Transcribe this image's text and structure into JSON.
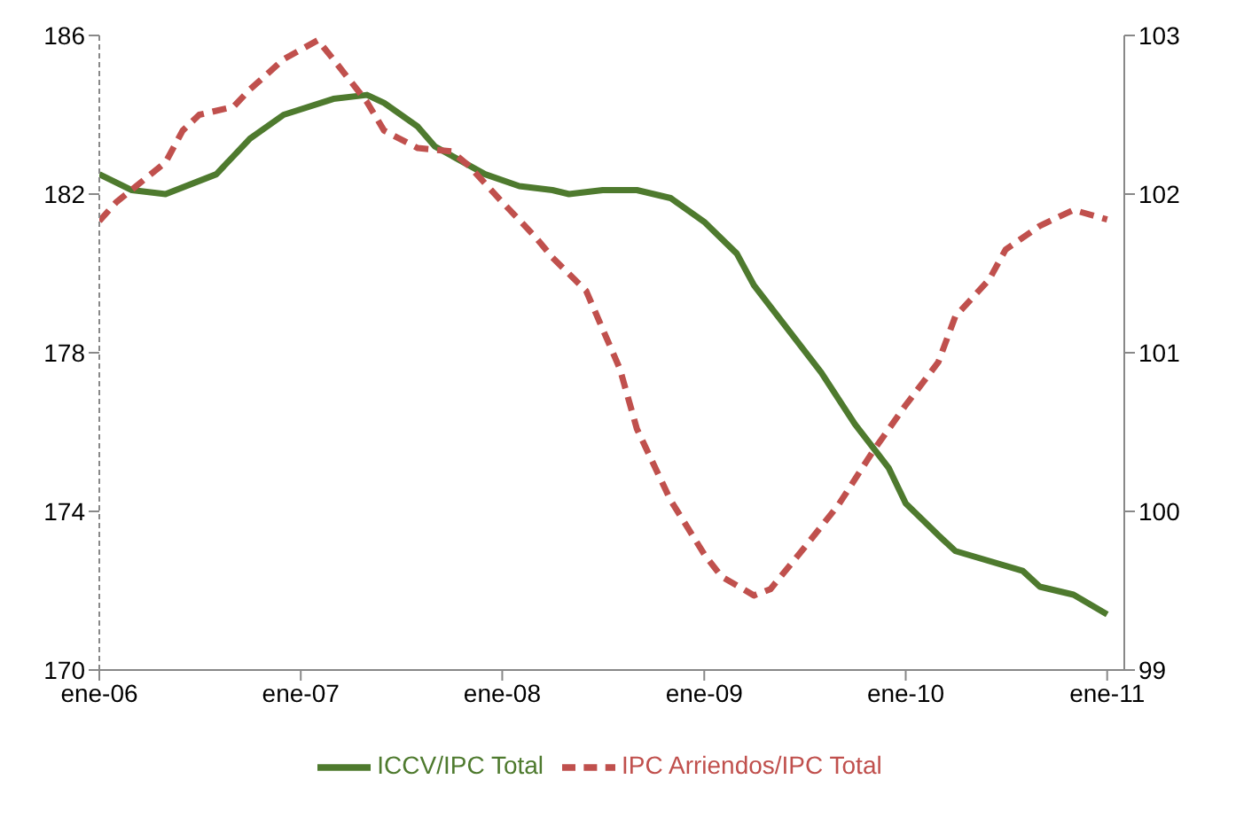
{
  "chart_data": {
    "type": "line",
    "legend": "bottom",
    "marker": "none",
    "xlim": [
      "2006-01",
      "2011-02"
    ],
    "xticks": [
      {
        "value": "2006-01",
        "label": "ene-06"
      },
      {
        "value": "2007-01",
        "label": "ene-07"
      },
      {
        "value": "2008-01",
        "label": "ene-08"
      },
      {
        "value": "2009-01",
        "label": "ene-09"
      },
      {
        "value": "2010-01",
        "label": "ene-10"
      },
      {
        "value": "2011-01",
        "label": "ene-11"
      }
    ],
    "ylim": [
      170,
      186
    ],
    "yticks": [
      170,
      174,
      178,
      182,
      186
    ],
    "y2lim": [
      99,
      103
    ],
    "y2ticks": [
      99,
      100,
      101,
      102,
      103
    ],
    "series": [
      {
        "name": "ICCV/IPC Total",
        "color": "#4e7a2e",
        "line_style": "solid",
        "x": [
          "2006-01",
          "2006-03",
          "2006-05",
          "2006-08",
          "2006-10",
          "2006-12",
          "2007-03",
          "2007-05",
          "2007-06",
          "2007-08",
          "2007-09",
          "2007-12",
          "2008-02",
          "2008-04",
          "2008-05",
          "2008-07",
          "2008-09",
          "2008-11",
          "2009-01",
          "2009-03",
          "2009-04",
          "2009-06",
          "2009-08",
          "2009-10",
          "2009-12",
          "2010-01",
          "2010-03",
          "2010-04",
          "2010-08",
          "2010-09",
          "2010-11",
          "2011-01"
        ],
        "values": [
          182.5,
          182.1,
          182.0,
          182.5,
          183.4,
          184.0,
          184.4,
          184.5,
          184.3,
          183.7,
          183.2,
          182.5,
          182.2,
          182.1,
          182.0,
          182.1,
          182.1,
          181.9,
          181.3,
          180.5,
          179.7,
          178.6,
          177.5,
          176.2,
          175.1,
          174.2,
          173.4,
          173.0,
          172.5,
          172.1,
          171.9,
          171.4
        ]
      },
      {
        "name": "IPC Arriendos/IPC Total",
        "color": "#c0504d",
        "line_style": "dashed",
        "axis": "y2",
        "x": [
          "2006-01",
          "2006-02",
          "2006-05",
          "2006-06",
          "2006-07",
          "2006-09",
          "2006-10",
          "2006-12",
          "2007-02",
          "2007-03",
          "2007-05",
          "2007-06",
          "2007-08",
          "2007-10",
          "2007-11",
          "2008-01",
          "2008-03",
          "2008-04",
          "2008-06",
          "2008-08",
          "2008-09",
          "2008-11",
          "2009-01",
          "2009-02",
          "2009-04",
          "2009-05",
          "2009-07",
          "2009-09",
          "2009-11",
          "2010-01",
          "2010-03",
          "2010-04",
          "2010-06",
          "2010-07",
          "2010-09",
          "2010-11",
          "2011-01"
        ],
        "values": [
          101.83,
          101.95,
          102.2,
          102.4,
          102.5,
          102.55,
          102.66,
          102.85,
          102.97,
          102.85,
          102.58,
          102.4,
          102.29,
          102.27,
          102.18,
          101.95,
          101.73,
          101.6,
          101.39,
          100.9,
          100.52,
          100.07,
          99.73,
          99.59,
          99.47,
          99.51,
          99.77,
          100.04,
          100.37,
          100.67,
          100.94,
          101.23,
          101.46,
          101.65,
          101.8,
          101.9,
          101.84
        ]
      }
    ]
  }
}
